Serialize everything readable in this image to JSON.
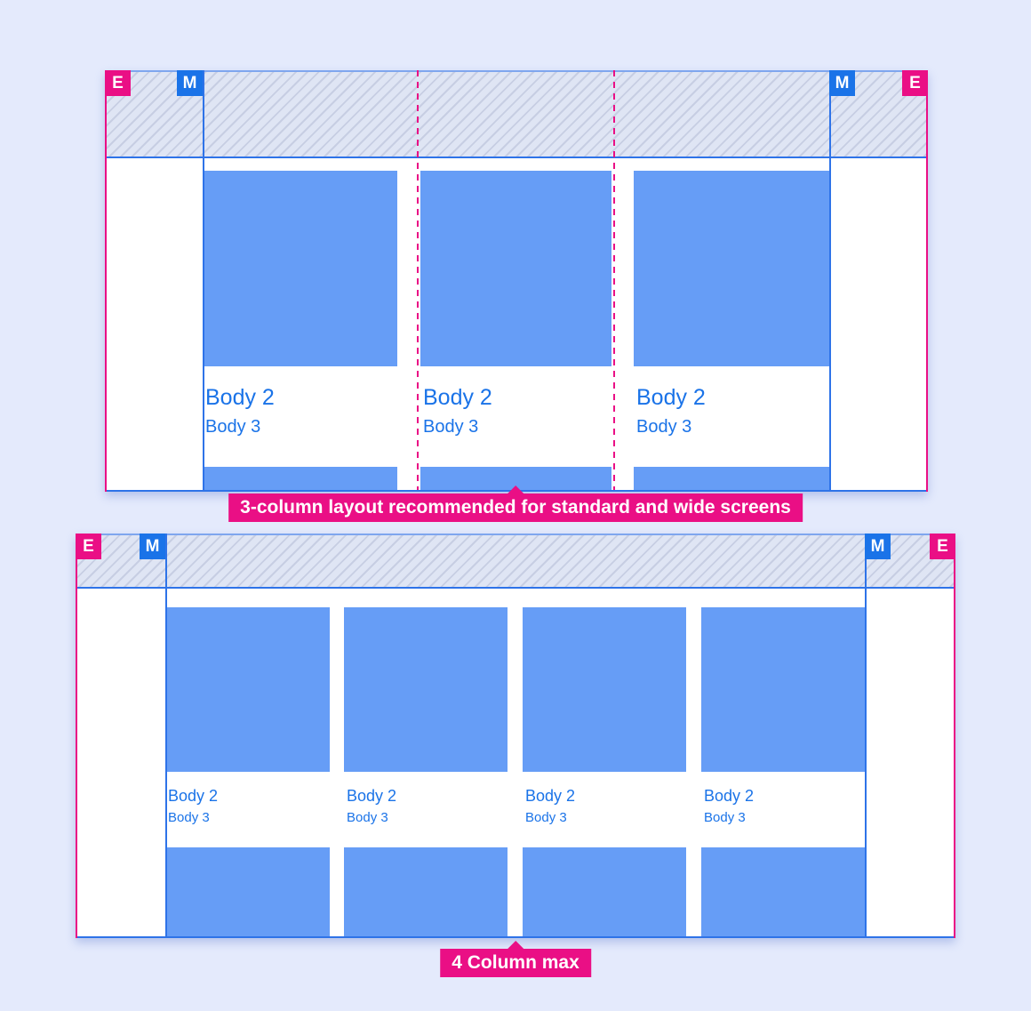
{
  "colors": {
    "page_bg": "#E4EAFC",
    "pink": "#EA0F85",
    "blue": "#1A73E8",
    "line_blue": "#2E73E8",
    "card_blue": "#669DF6",
    "hatch_bg": "#DFE5F4",
    "hatch_line": "#C7CEE3",
    "text_blue": "#1A73E8"
  },
  "sections": [
    {
      "id": "three-column",
      "badges": {
        "edge_left": "E",
        "margin_left": "M",
        "margin_right": "M",
        "edge_right": "E"
      },
      "cards": [
        {
          "title": "Body 2",
          "subtitle": "Body 3"
        },
        {
          "title": "Body 2",
          "subtitle": "Body 3"
        },
        {
          "title": "Body 2",
          "subtitle": "Body 3"
        }
      ],
      "caption": "3-column layout recommended for standard and wide screens"
    },
    {
      "id": "four-column",
      "badges": {
        "edge_left": "E",
        "margin_left": "M",
        "margin_right": "M",
        "edge_right": "E"
      },
      "cards": [
        {
          "title": "Body 2",
          "subtitle": "Body 3"
        },
        {
          "title": "Body 2",
          "subtitle": "Body 3"
        },
        {
          "title": "Body 2",
          "subtitle": "Body 3"
        },
        {
          "title": "Body 2",
          "subtitle": "Body 3"
        }
      ],
      "caption": "4 Column max"
    }
  ]
}
